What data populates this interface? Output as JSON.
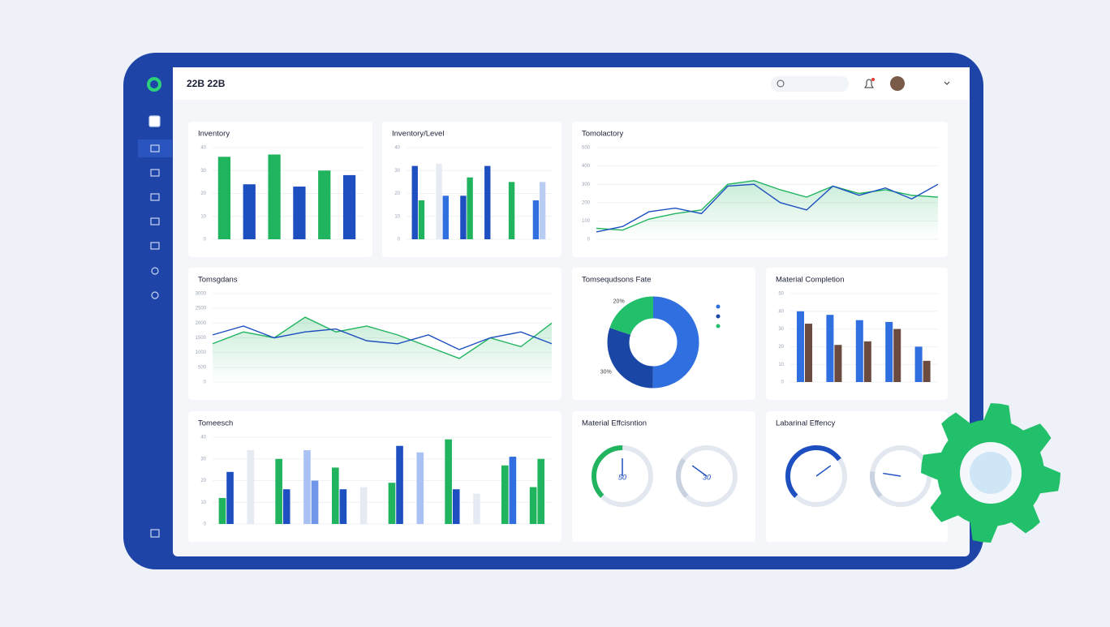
{
  "header": {
    "title": "22B 22B"
  },
  "panels": [
    {
      "title": "Inventory",
      "type": "bar",
      "ylim": [
        0,
        40
      ],
      "yticks": [
        0,
        10,
        20,
        30,
        40
      ],
      "series": [
        {
          "colors": [
            "#21b45f",
            "#1d4fc0",
            "#21b45f",
            "#1d4fc0",
            "#21b45f",
            "#1d4fc0"
          ],
          "values": [
            36,
            24,
            37,
            23,
            30,
            28
          ]
        }
      ]
    },
    {
      "title": "Inventory/Level",
      "type": "bar",
      "ylim": [
        0,
        40
      ],
      "yticks": [
        0,
        10,
        20,
        30,
        40
      ],
      "series": [
        {
          "colors": [
            "#1d4fc0",
            "#e6ebf3",
            "#1d4fc0",
            "#1d4fc0",
            "#21b45f",
            "#2f6fe0"
          ],
          "values": [
            32,
            33,
            19,
            32,
            25,
            17
          ]
        },
        {
          "colors": [
            "#21b45f",
            "#2f6fe0",
            "#21b45f",
            "#e6ebf3",
            "#e6ebf3",
            "#b9cdf3"
          ],
          "values": [
            17,
            19,
            27,
            null,
            null,
            25
          ]
        }
      ]
    },
    {
      "title": "Tomolactory",
      "type": "line",
      "ylim": [
        0,
        500
      ],
      "yticks": [
        0,
        100,
        200,
        300,
        400,
        500
      ],
      "series": [
        {
          "color": "#21b45f",
          "values": [
            60,
            50,
            110,
            140,
            160,
            300,
            320,
            270,
            230,
            290,
            250,
            270,
            240,
            230
          ]
        },
        {
          "color": "#1d4fc0",
          "values": [
            40,
            70,
            150,
            170,
            140,
            290,
            300,
            200,
            160,
            290,
            240,
            280,
            220,
            300
          ]
        }
      ]
    },
    {
      "title": "Tomsgdans",
      "type": "line",
      "ylim": [
        0,
        3000
      ],
      "yticks": [
        0,
        500,
        1000,
        1500,
        2000,
        2500,
        3000
      ],
      "series": [
        {
          "color": "#21b45f",
          "values": [
            1300,
            1700,
            1500,
            2200,
            1700,
            1900,
            1600,
            1200,
            800,
            1500,
            1200,
            2000
          ]
        },
        {
          "color": "#1d4fc0",
          "values": [
            1600,
            1900,
            1500,
            1700,
            1800,
            1400,
            1300,
            1600,
            1100,
            1500,
            1700,
            1300
          ]
        }
      ]
    },
    {
      "title": "Tomsequdsons Fate",
      "type": "donut",
      "slices": [
        {
          "value": 50,
          "color": "#2f6fe0"
        },
        {
          "value": 30,
          "color": "#1a47a6",
          "label": "30%"
        },
        {
          "value": 20,
          "color": "#22c06a",
          "label": "20%"
        }
      ]
    },
    {
      "title": "Material Completion",
      "type": "bar",
      "ylim": [
        0,
        50
      ],
      "yticks": [
        0,
        10,
        20,
        30,
        40,
        50
      ],
      "series": [
        {
          "colors": [
            "#2f6fe0",
            "#2f6fe0",
            "#2f6fe0",
            "#2f6fe0",
            "#2f6fe0"
          ],
          "values": [
            40,
            38,
            35,
            34,
            20
          ]
        },
        {
          "colors": [
            "#6b4a3f",
            "#6b4a3f",
            "#6b4a3f",
            "#6b4a3f",
            "#6b4a3f"
          ],
          "values": [
            33,
            21,
            23,
            30,
            12
          ]
        }
      ]
    },
    {
      "title": "Tomeesch",
      "type": "bar",
      "ylim": [
        0,
        40
      ],
      "yticks": [
        0,
        10,
        20,
        30,
        40
      ],
      "series": [
        {
          "colors": [
            "#21b45f",
            "#e6ebf3",
            "#21b45f",
            "#a9c1f3",
            "#21b45f",
            "#e6ebf3",
            "#21b45f",
            "#a9c1f3",
            "#21b45f",
            "#e6ebf3",
            "#21b45f",
            "#21b45f"
          ],
          "values": [
            12,
            34,
            30,
            34,
            26,
            17,
            19,
            33,
            39,
            14,
            27,
            17
          ]
        },
        {
          "colors": [
            "#1d4fc0",
            "#1d4fc0",
            "#1d4fc0",
            "#6f96e8",
            "#1d4fc0",
            "#1d4fc0",
            "#1d4fc0",
            "#1d4fc0",
            "#1d4fc0",
            "#1d4fc0",
            "#2f6fe0",
            "#21b45f"
          ],
          "values": [
            24,
            null,
            16,
            20,
            16,
            null,
            36,
            null,
            16,
            null,
            31,
            30
          ]
        }
      ]
    },
    {
      "title": "Material Effcisntion",
      "type": "gauge",
      "gauges": [
        {
          "value": 50,
          "label": "50",
          "color": "#21b45f"
        },
        {
          "value": 30,
          "label": "30",
          "color": "#c9d2e0"
        }
      ]
    },
    {
      "title": "Labarinal Effency",
      "type": "gauge",
      "gauges": [
        {
          "value": 70,
          "color": "#1d4fc0"
        },
        {
          "value": 20,
          "color": "#c9d2e0"
        }
      ]
    }
  ]
}
